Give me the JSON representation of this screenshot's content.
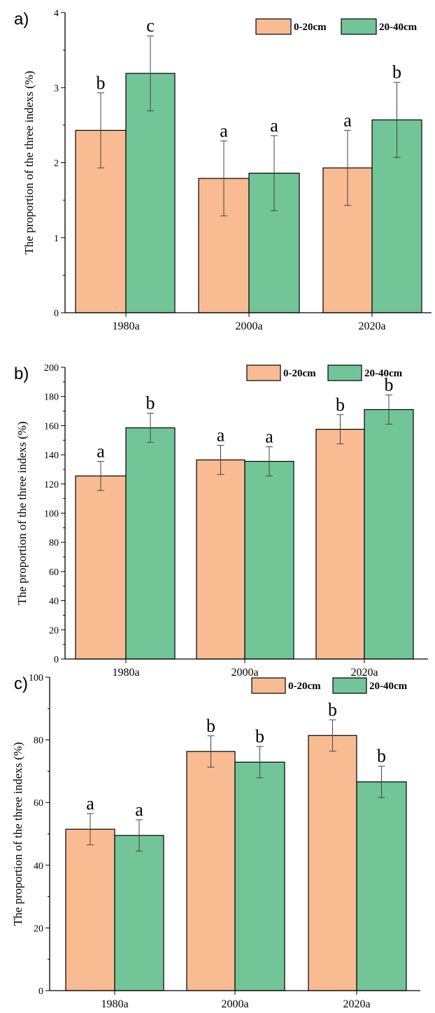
{
  "colors": {
    "series_0_20": "#f8bb92",
    "series_20_40": "#72c597",
    "stroke": "#000000"
  },
  "chart_data": [
    {
      "type": "bar",
      "panel_label": "a)",
      "categories": [
        "1980a",
        "2000a",
        "2020a"
      ],
      "series": [
        {
          "name": "0-20cm",
          "values": [
            2.43,
            1.79,
            1.93
          ],
          "errors": [
            0.5,
            0.5,
            0.5
          ],
          "sig": [
            "b",
            "a",
            "a"
          ]
        },
        {
          "name": "20-40cm",
          "values": [
            3.19,
            1.86,
            2.57
          ],
          "errors": [
            0.5,
            0.5,
            0.5
          ],
          "sig": [
            "c",
            "a",
            "b"
          ]
        }
      ],
      "ylabel": "The proportion of the three indexs (%)",
      "ylim": [
        0,
        4
      ],
      "yticks": [
        0,
        1,
        2,
        3,
        4
      ],
      "legend": "top-right",
      "grid": false
    },
    {
      "type": "bar",
      "panel_label": "b)",
      "categories": [
        "1980a",
        "2000a",
        "2020a"
      ],
      "series": [
        {
          "name": "0-20cm",
          "values": [
            125.5,
            136.5,
            157.5
          ],
          "errors": [
            10,
            10,
            10
          ],
          "sig": [
            "a",
            "a",
            "b"
          ]
        },
        {
          "name": "20-40cm",
          "values": [
            158.5,
            135.5,
            171.0
          ],
          "errors": [
            10,
            10,
            10
          ],
          "sig": [
            "b",
            "a",
            "b"
          ]
        }
      ],
      "ylabel": "The proportion of the three indexs (%)",
      "ylim": [
        0,
        200
      ],
      "yticks": [
        0,
        20,
        40,
        60,
        80,
        100,
        120,
        140,
        160,
        180,
        200
      ],
      "legend": "top-right",
      "grid": false
    },
    {
      "type": "bar",
      "panel_label": "c)",
      "categories": [
        "1980a",
        "2000a",
        "2020a"
      ],
      "series": [
        {
          "name": "0-20cm",
          "values": [
            51.5,
            76.3,
            81.4
          ],
          "errors": [
            5,
            5,
            5
          ],
          "sig": [
            "a",
            "b",
            "b"
          ]
        },
        {
          "name": "20-40cm",
          "values": [
            49.5,
            72.9,
            66.6
          ],
          "errors": [
            5,
            5,
            5
          ],
          "sig": [
            "a",
            "b",
            "b"
          ]
        }
      ],
      "ylabel": "The proportion of the three indexs (%)",
      "ylim": [
        0,
        100
      ],
      "yticks": [
        0,
        20,
        40,
        60,
        80,
        100
      ],
      "legend": "top-right",
      "grid": false
    }
  ]
}
